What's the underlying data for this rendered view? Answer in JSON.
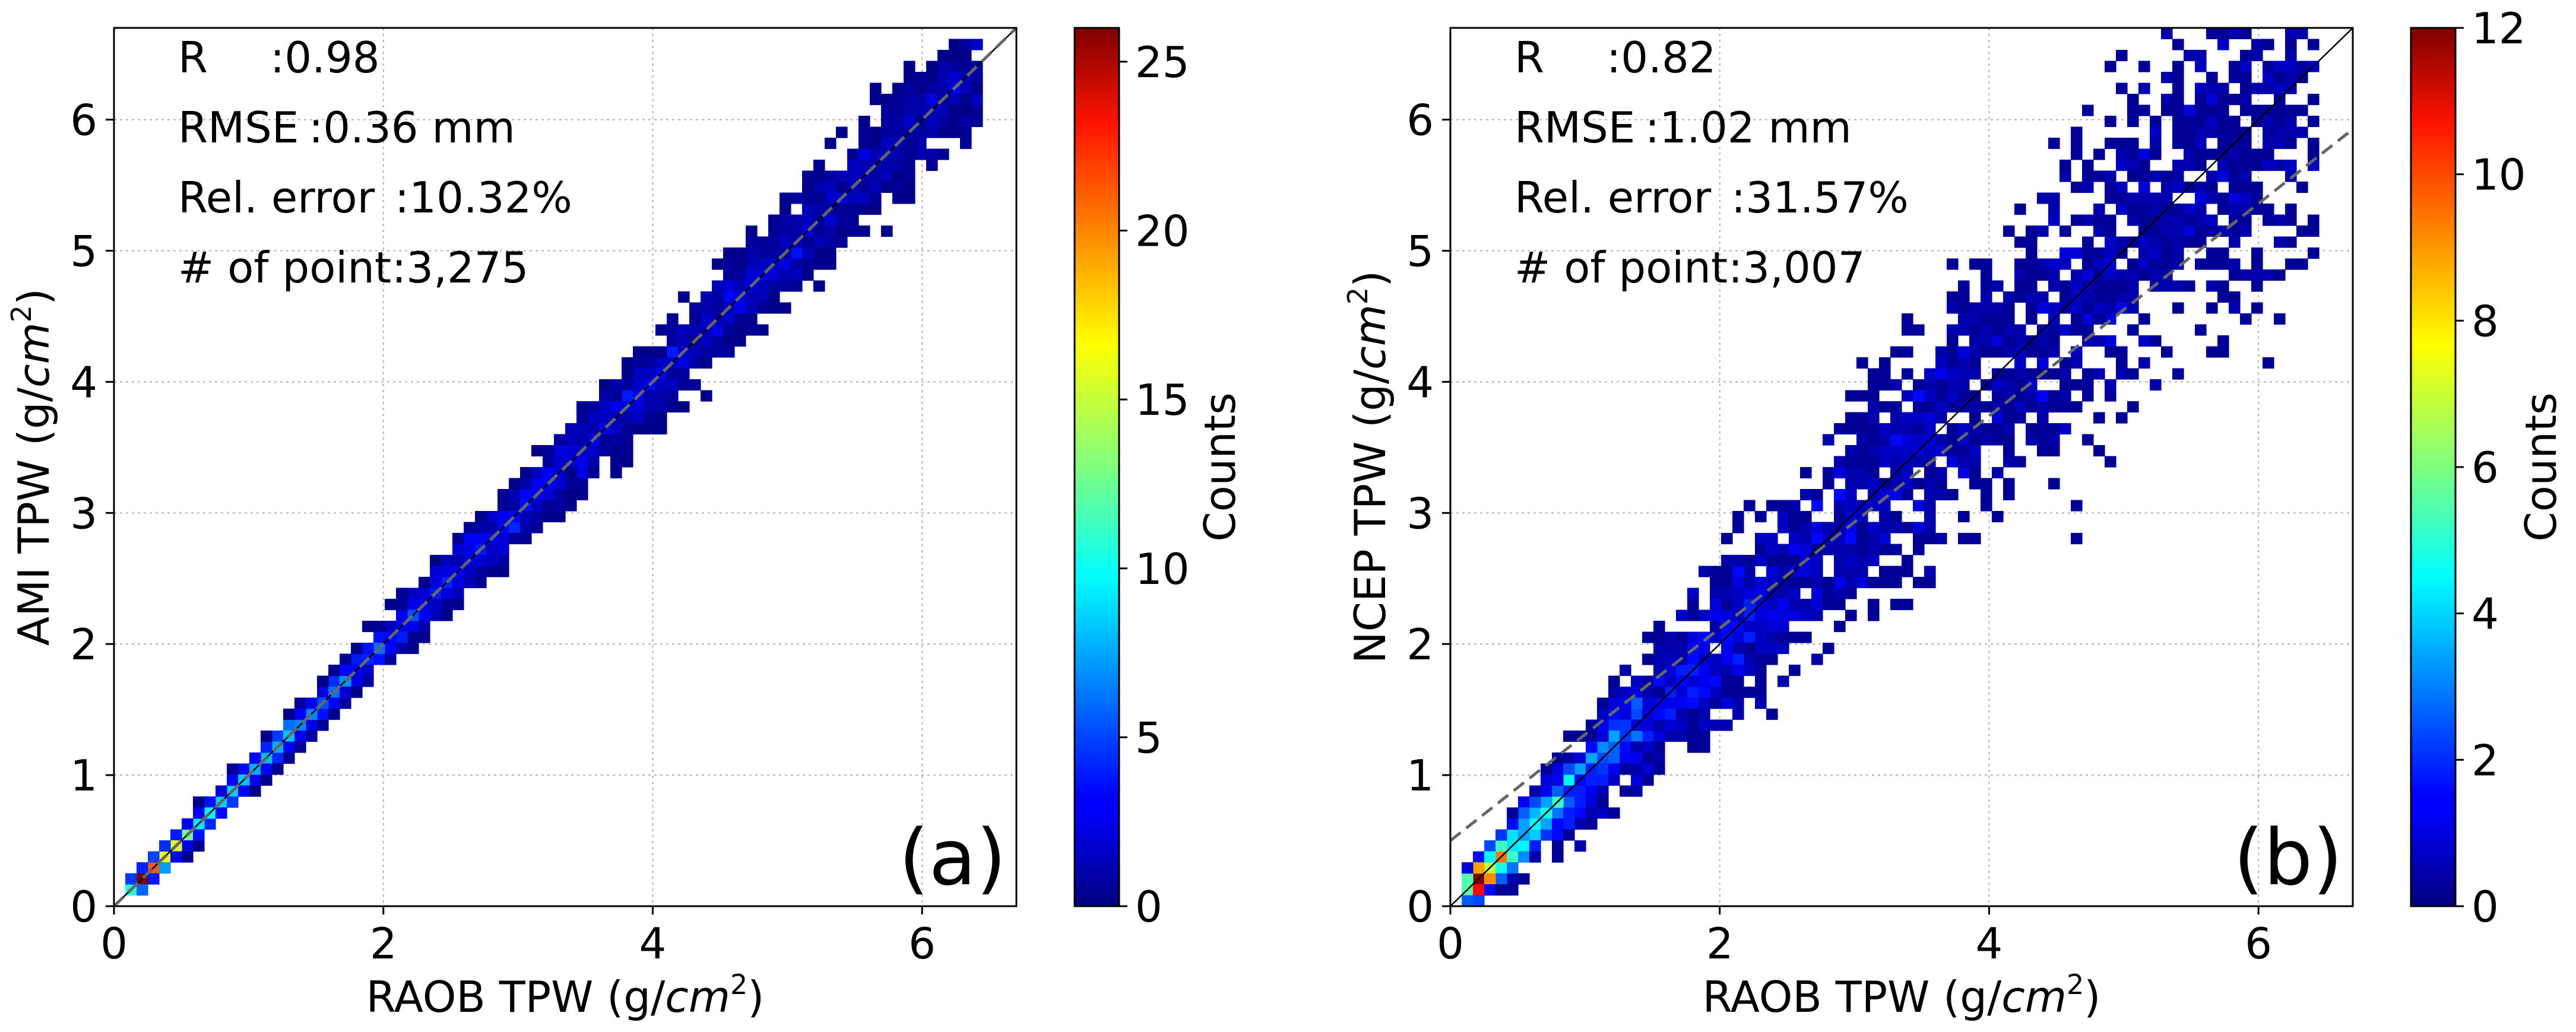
{
  "chart_data": [
    {
      "type": "heatmap",
      "panel_label": "(a)",
      "xlabel": "RAOB TPW (g/",
      "ylabel": "AMI TPW (g/",
      "unit_var": "cm",
      "unit_exp": "2",
      "unit_close": ")",
      "xlim": [
        0,
        6.7
      ],
      "ylim": [
        0,
        6.7
      ],
      "xticks": [
        "0",
        "2",
        "4",
        "6"
      ],
      "yticks": [
        "0",
        "1",
        "2",
        "3",
        "4",
        "5",
        "6"
      ],
      "stats": {
        "r_label": "R",
        "r_value": ":0.98",
        "rmse_label": "RMSE",
        "rmse_value": ":0.36 mm",
        "rel_label": "Rel. error",
        "rel_value": ":10.32%",
        "n_label": "# of point",
        "n_value": ":3,275"
      },
      "regression": {
        "slope": 1.0,
        "intercept": 0.0
      },
      "one_to_one": true,
      "colorbar": {
        "label": "Counts",
        "min": 0,
        "max": 26,
        "ticks": [
          "0",
          "5",
          "10",
          "15",
          "20",
          "25"
        ]
      },
      "scatter_model": {
        "spread": 0.045,
        "base_sd": 0.03,
        "seed": 11,
        "n_bins": 80,
        "peak_count": 26
      }
    },
    {
      "type": "heatmap",
      "panel_label": "(b)",
      "xlabel": "RAOB TPW (g/",
      "ylabel": "NCEP TPW (g/",
      "unit_var": "cm",
      "unit_exp": "2",
      "unit_close": ")",
      "xlim": [
        0,
        6.7
      ],
      "ylim": [
        0,
        6.7
      ],
      "xticks": [
        "0",
        "2",
        "4",
        "6"
      ],
      "yticks": [
        "0",
        "1",
        "2",
        "3",
        "4",
        "5",
        "6"
      ],
      "stats": {
        "r_label": "R",
        "r_value": ":0.82",
        "rmse_label": "RMSE",
        "rmse_value": ":1.02 mm",
        "rel_label": "Rel. error",
        "rel_value": ":31.57%",
        "n_label": "# of point",
        "n_value": ":3,007"
      },
      "regression": {
        "slope": 0.81,
        "intercept": 0.5
      },
      "one_to_one": true,
      "colorbar": {
        "label": "Counts",
        "min": 0,
        "max": 12,
        "ticks": [
          "0",
          "2",
          "4",
          "6",
          "8",
          "10",
          "12"
        ]
      },
      "scatter_model": {
        "spread": 0.16,
        "base_sd": 0.08,
        "seed": 23,
        "n_bins": 80,
        "peak_count": 12
      }
    }
  ]
}
